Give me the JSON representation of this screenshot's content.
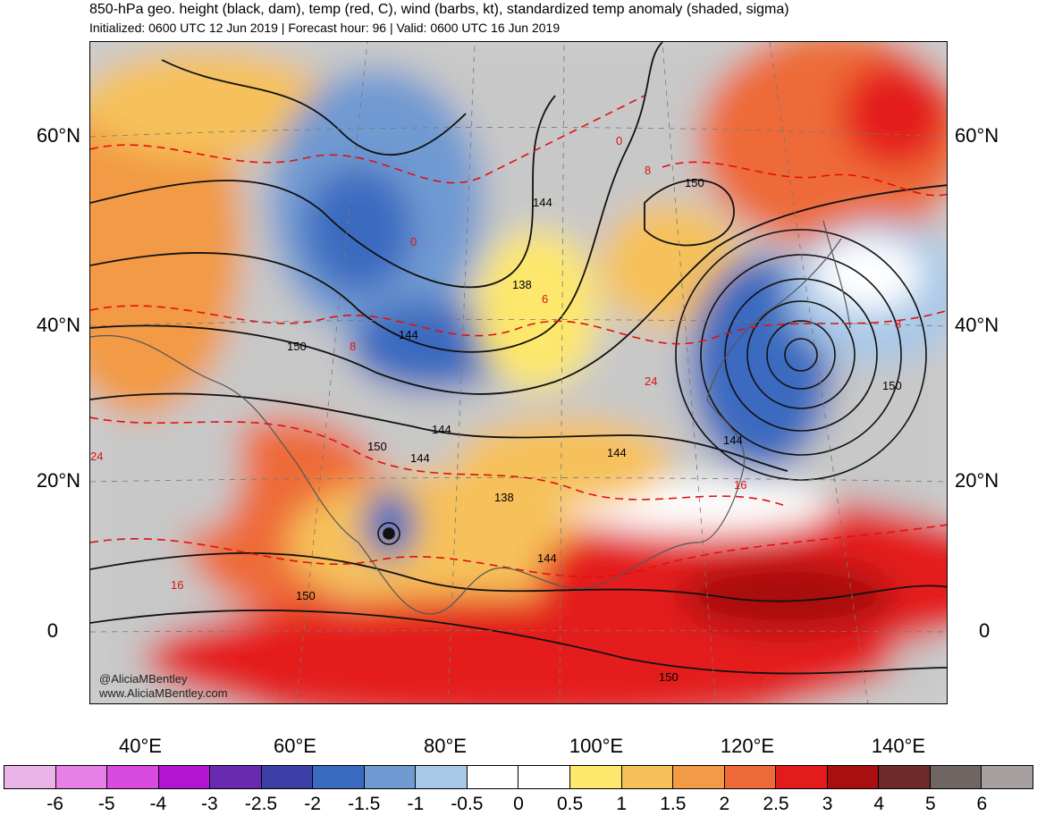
{
  "header": {
    "title": "850-hPa geo. height (black, dam), temp (red, C), wind (barbs, kt), standardized temp anomaly (shaded, sigma)",
    "subtitle": "Initialized: 0600 UTC 12 Jun 2019 | Forecast hour: 96 | Valid: 0600 UTC 16 Jun 2019"
  },
  "map": {
    "region": "Asia",
    "lat_labels": [
      "60°N",
      "40°N",
      "20°N",
      "0"
    ],
    "lon_labels": [
      "40°E",
      "60°E",
      "80°E",
      "100°E",
      "120°E",
      "140°E"
    ],
    "height_contour_labels": [
      "144",
      "150",
      "138",
      "144",
      "150",
      "144",
      "150",
      "144",
      "144",
      "138",
      "144",
      "144",
      "150",
      "150",
      "150"
    ],
    "temp_contour_labels": [
      "0",
      "8",
      "6",
      "16",
      "24",
      "8",
      "0",
      "24",
      "16",
      "8"
    ]
  },
  "credits": {
    "handle": "@AliciaMBentley",
    "website": "www.AliciaMBentley.com"
  },
  "colorbar": {
    "colors": [
      "#ebb4e8",
      "#e87fe6",
      "#d94ae0",
      "#b314d0",
      "#6a2ab0",
      "#3d3fa6",
      "#3a6ac0",
      "#6f9ad2",
      "#a8c8e8",
      "#ffffff",
      "#ffffff",
      "#fde76c",
      "#f6c15a",
      "#f29a45",
      "#ee6a38",
      "#e41b1b",
      "#a80f0f",
      "#6e2a28",
      "#6f6562",
      "#a7a0a0"
    ],
    "labels": [
      "-6",
      "-5",
      "-4",
      "-3",
      "-2.5",
      "-2",
      "-1.5",
      "-1",
      "-0.5",
      "0",
      "0.5",
      "1",
      "1.5",
      "2",
      "2.5",
      "3",
      "4",
      "5",
      "6"
    ]
  }
}
